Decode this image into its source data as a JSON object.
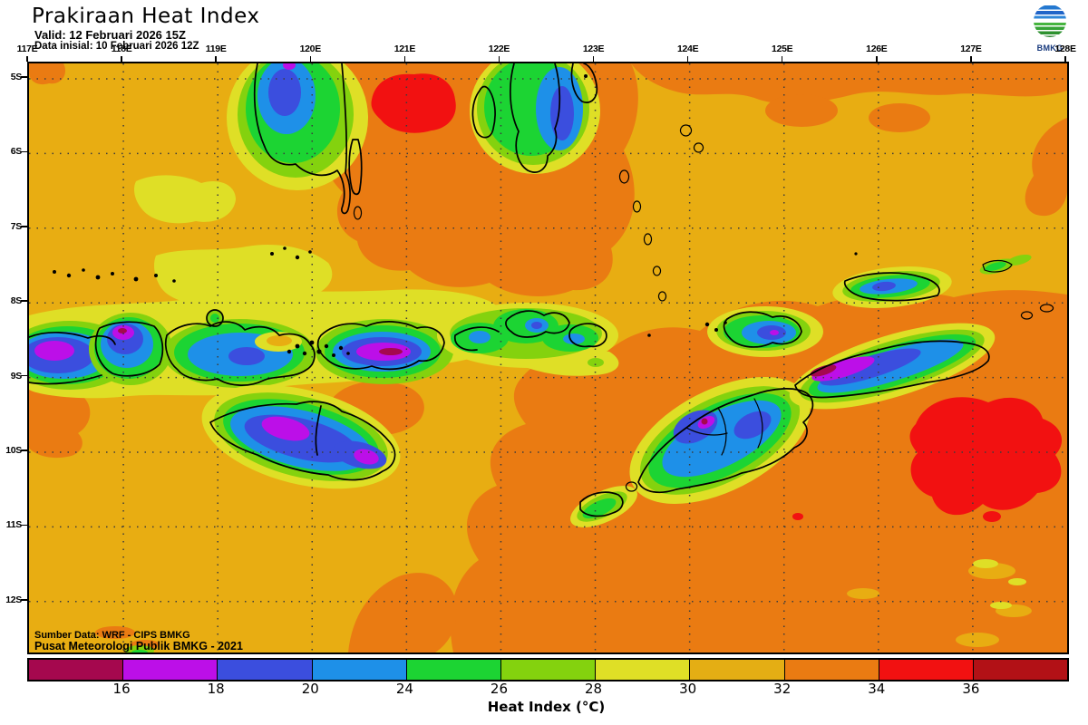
{
  "header": {
    "title": "Prakiraan Heat Index",
    "valid": "Valid: 12 Februari 2026 15Z",
    "initial": "Data inisial: 10 Februari 2026 12Z",
    "logo_label": "BMKG"
  },
  "map": {
    "lon_ticks": [
      "117E",
      "118E",
      "119E",
      "120E",
      "121E",
      "122E",
      "123E",
      "124E",
      "125E",
      "126E",
      "127E",
      "128E"
    ],
    "lat_ticks": [
      "5S",
      "6S",
      "7S",
      "8S",
      "9S",
      "10S",
      "11S",
      "12S"
    ],
    "credit_line1": "Sumber Data: WRF - CIPS BMKG",
    "credit_line2": "Pusat Meteorologi Publik BMKG - 2021"
  },
  "colorbar": {
    "label": "Heat Index (°C)",
    "ticks": [
      "16",
      "18",
      "20",
      "24",
      "26",
      "28",
      "30",
      "32",
      "34",
      "36"
    ],
    "colors": [
      "#A5084E",
      "#BC0FE8",
      "#3B4EDE",
      "#1E90E8",
      "#1CD433",
      "#84D20E",
      "#DFDF26",
      "#E4AE14",
      "#EA7B12",
      "#F21111",
      "#B21116"
    ]
  },
  "palette": {
    "amber": "#E8AD12",
    "orange": "#EA7B12",
    "yellow": "#DFDF26",
    "lime": "#84D20E",
    "green": "#1CD433",
    "azure": "#1E90E8",
    "blue": "#3B4EDE",
    "purple": "#BC0FE8",
    "maroon": "#A5084E",
    "red": "#F21111",
    "grid_dot": "#3C3C3C",
    "logo_blue": "#2478D0",
    "logo_green": "#35A335"
  }
}
